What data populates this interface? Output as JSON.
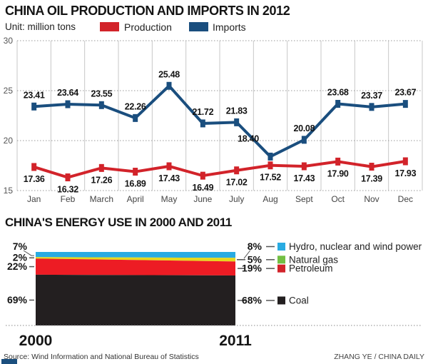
{
  "header": {
    "title": "CHINA OIL PRODUCTION AND IMPORTS IN 2012",
    "unit_label": "Unit: million tons"
  },
  "chart_data": [
    {
      "type": "line",
      "title": "CHINA OIL PRODUCTION AND IMPORTS IN 2012",
      "unit": "million tons",
      "categories": [
        "Jan",
        "Feb",
        "March",
        "April",
        "May",
        "June",
        "July",
        "Aug",
        "Sept",
        "Oct",
        "Nov",
        "Dec"
      ],
      "series": [
        {
          "name": "Production",
          "color": "#d2232a",
          "values": [
            17.36,
            16.32,
            17.26,
            16.89,
            17.43,
            16.49,
            17.02,
            17.52,
            17.43,
            17.9,
            17.39,
            17.93
          ],
          "labels": [
            "17.36",
            "16.32",
            "17.26",
            "16.89",
            "17.43",
            "16.49",
            "17.02",
            "17.52",
            "17.43",
            "17.90",
            "17.39",
            "17.93"
          ],
          "label_position": "below"
        },
        {
          "name": "Imports",
          "color": "#1a4e7e",
          "values": [
            23.41,
            23.64,
            23.55,
            22.26,
            25.48,
            21.72,
            21.83,
            18.4,
            20.08,
            23.68,
            23.37,
            23.67
          ],
          "labels": [
            "23.41",
            "23.64",
            "23.55",
            "22.26",
            "25.48",
            "21.72",
            "21.83",
            "18.40",
            "20.08",
            "23.68",
            "23.37",
            "23.67"
          ],
          "label_position": "above",
          "label_offsets": {
            "7": [
              -31,
              -9
            ]
          }
        }
      ],
      "ylim": [
        15,
        30
      ],
      "yticks": [
        30,
        25,
        20,
        15
      ],
      "grid": {
        "vertical": "solid",
        "horizontal": "dotted"
      },
      "legend_position": "top"
    },
    {
      "type": "area",
      "title": "CHINA'S ENERGY USE IN 2000 AND 2011",
      "categories": [
        "2000",
        "2011"
      ],
      "series": [
        {
          "name": "Hydro, nuclear and wind power",
          "color": "#29abe2",
          "legend_color": "#29abe2",
          "values": [
            7,
            8
          ]
        },
        {
          "name": "Natural gas",
          "color": "#e6d71e",
          "legend_color": "#72bf44",
          "values": [
            2,
            5
          ]
        },
        {
          "name": "Petroleum",
          "color": "#ed1c24",
          "legend_color": "#d2232a",
          "values": [
            22,
            19
          ]
        },
        {
          "name": "Coal",
          "color": "#231f20",
          "legend_color": "#231f20",
          "values": [
            69,
            68
          ]
        }
      ],
      "left_labels": [
        "7%",
        "2%",
        "22%",
        "69%"
      ],
      "right_labels": [
        "8%",
        "5%",
        "19%",
        "68%"
      ],
      "legend_position": "right"
    }
  ],
  "footer": {
    "source": "Source: Wind Information and National Bureau of Statistics",
    "credit": "ZHANG YE / CHINA DAILY"
  }
}
